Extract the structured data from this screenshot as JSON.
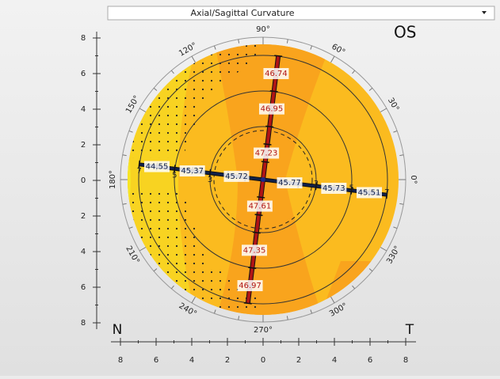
{
  "toolbar": {
    "dropdown": "Axial/Sagittal Curvature"
  },
  "map": {
    "eye": "OS",
    "nasal": "N",
    "temporal": "T",
    "angle_labels": [
      "0°",
      "30°",
      "60°",
      "90°",
      "120°",
      "150°",
      "180°",
      "210°",
      "240°",
      "270°",
      "300°",
      "330°"
    ],
    "y_axis_labels": [
      "8",
      "6",
      "4",
      "2",
      "0",
      "2",
      "4",
      "6",
      "8"
    ],
    "x_axis_labels": [
      "8",
      "6",
      "4",
      "2",
      "0",
      "2",
      "4",
      "6",
      "8"
    ],
    "ring_labels_left": [
      "7",
      "5",
      "3"
    ],
    "ring_labels_right": [
      "3",
      "5",
      "7"
    ],
    "steep_meridian": [
      "46.74",
      "46.95",
      "47.23",
      "47.61",
      "47.35",
      "46.97"
    ],
    "flat_meridian": [
      "44.55",
      "45.37",
      "45.72",
      "45.77",
      "45.73",
      "45.51"
    ]
  }
}
